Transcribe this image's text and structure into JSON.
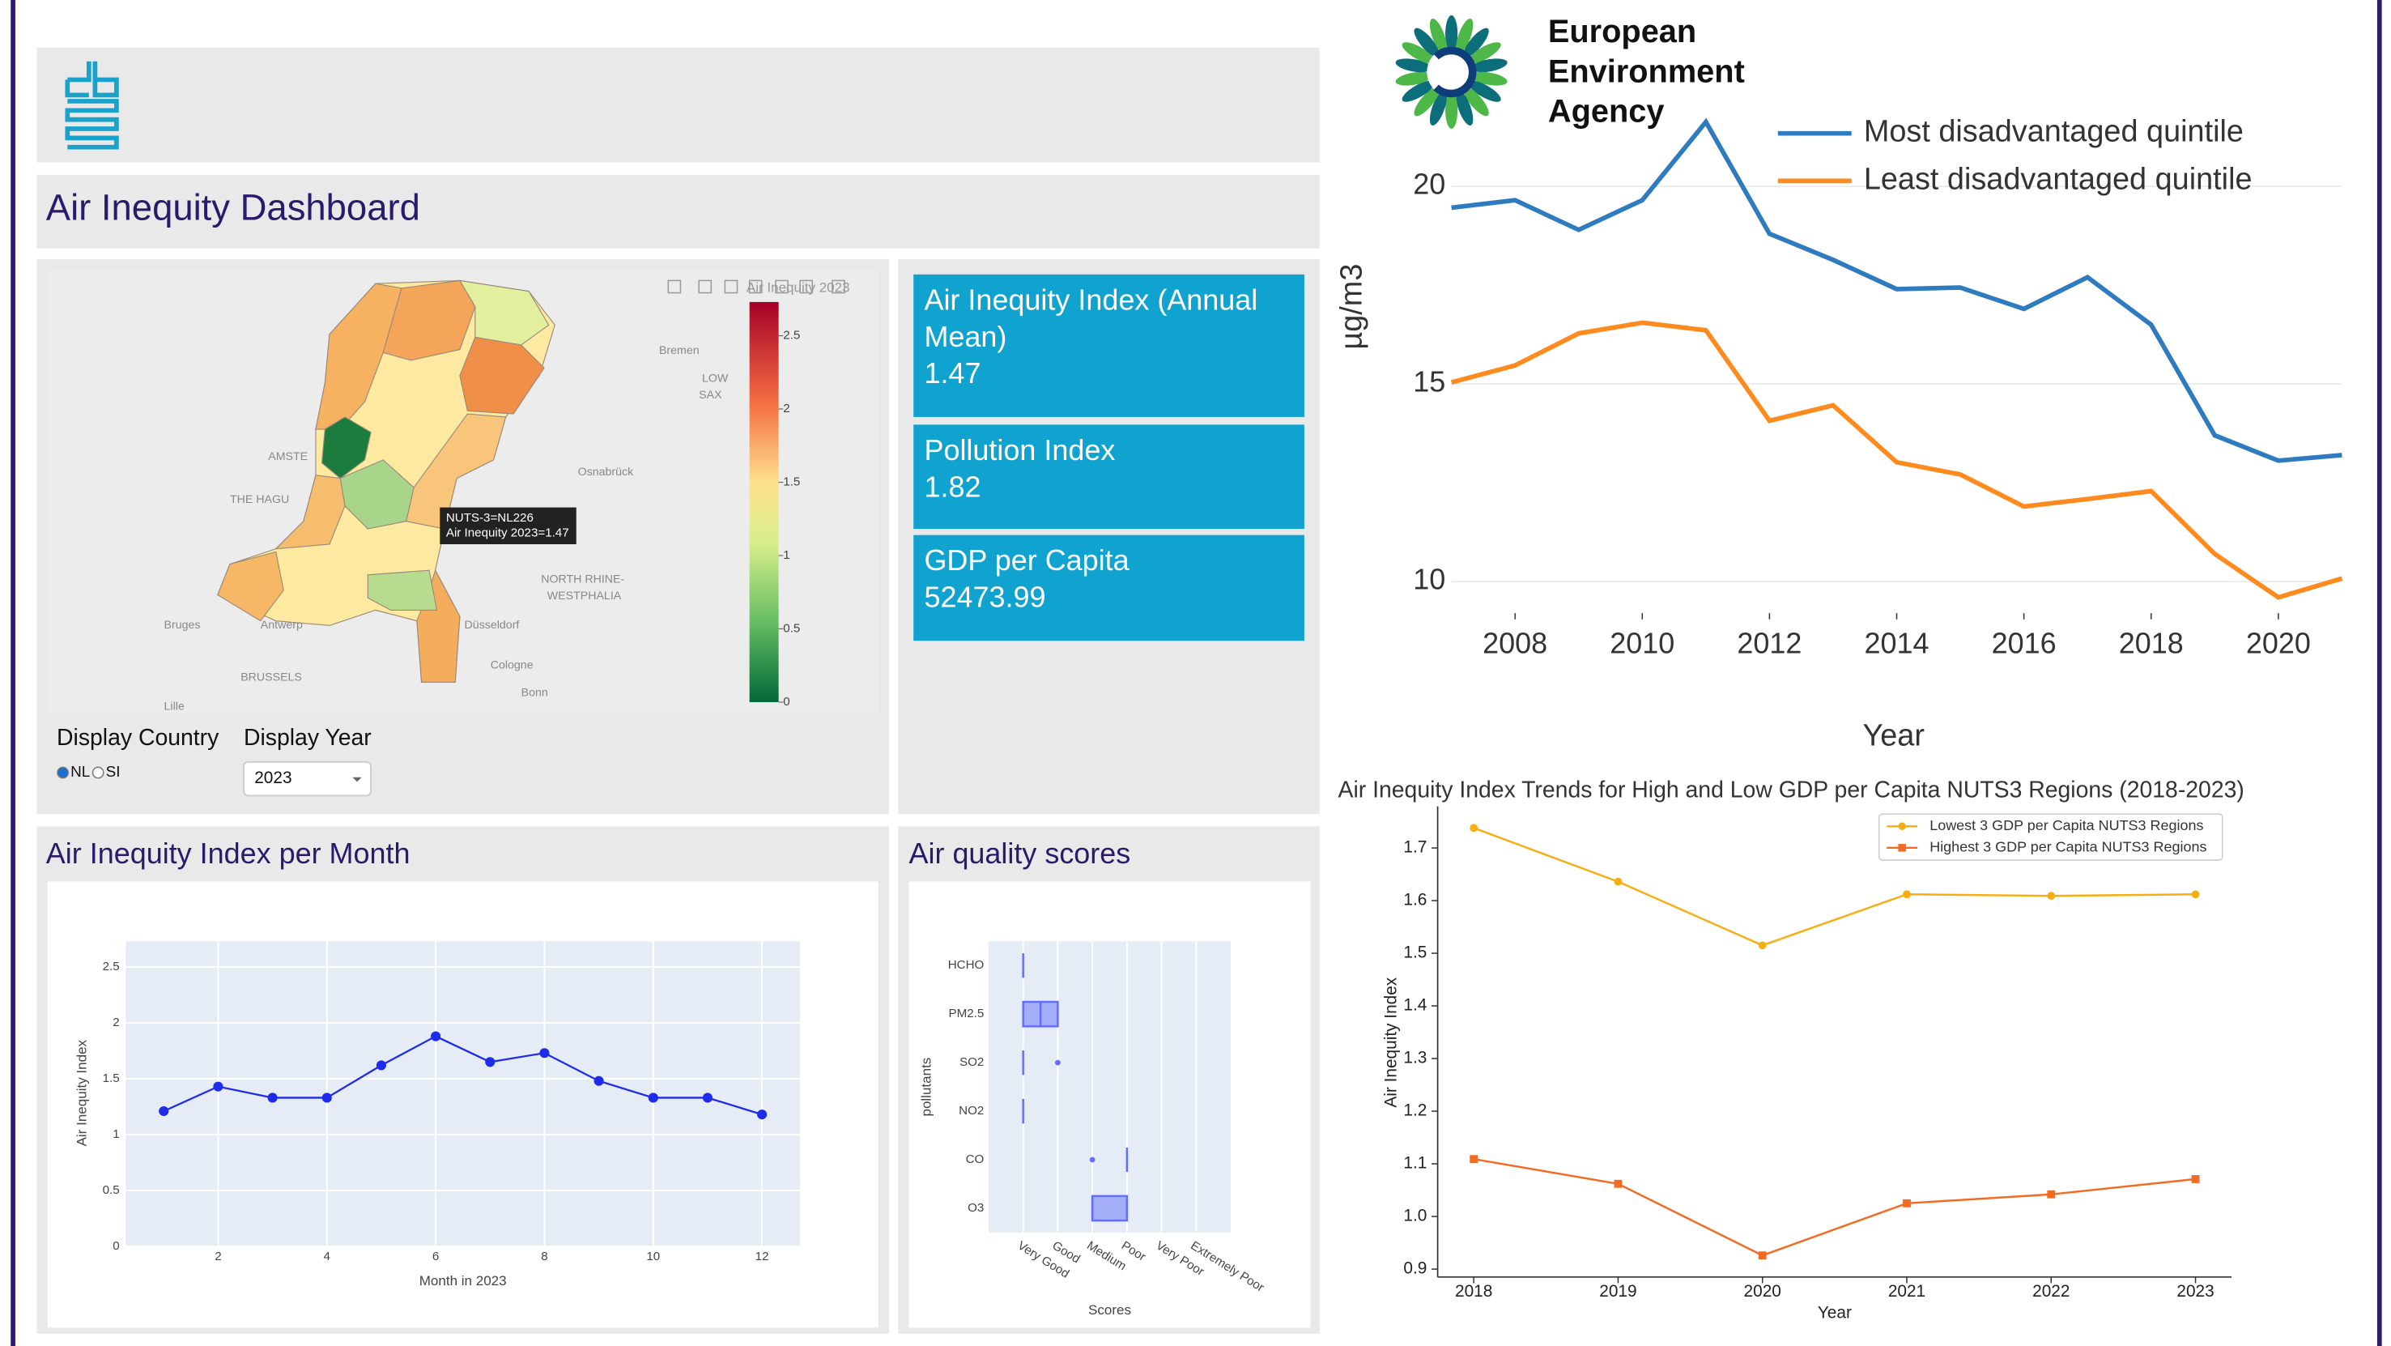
{
  "header": {
    "title": "Air Inequity Dashboard",
    "eea_logo": [
      "European",
      "Environment",
      "Agency"
    ]
  },
  "kpis": [
    {
      "label": "Air Inequity Index (Annual Mean)",
      "value": 1.47
    },
    {
      "label": "Pollution Index",
      "value": 1.82
    },
    {
      "label": "GDP per Capita",
      "value": 52473.99
    }
  ],
  "map": {
    "tooltip": [
      "NUTS-3=NL226",
      "Air Inequity 2023=1.47"
    ],
    "labels": [
      "Bremen",
      "LOW",
      "SAX",
      "Osnabrück",
      "NORTH RHINE-",
      "WESTPHALIA",
      "Düsseldorf",
      "Cologne",
      "Bonn",
      "BRUSSELS",
      "Antwerp",
      "Bruges",
      "Lille",
      "THE HAGU",
      "AMSTE"
    ],
    "colorbar": {
      "title": "Air Inequity 2023",
      "range": [
        0,
        2.73
      ],
      "ticks": [
        0,
        0.5,
        1,
        1.5,
        2,
        2.5
      ]
    }
  },
  "controls": {
    "country_label": "Display Country",
    "year_label": "Display Year",
    "country_options": [
      "NL",
      "SI"
    ],
    "selected_country": "NL",
    "year": 2023
  },
  "chart_data": [
    {
      "type": "line",
      "title": "Air Inequity Index per Month",
      "x_label": "Month in 2023",
      "y_label": "Air Inequity Index",
      "x": [
        1,
        2,
        3,
        4,
        5,
        6,
        7,
        8,
        9,
        10,
        11,
        12
      ],
      "series": [
        {
          "color": "#1f2bea",
          "values": [
            1.21,
            1.43,
            1.33,
            1.33,
            1.62,
            1.88,
            1.65,
            1.73,
            1.48,
            1.33,
            1.33,
            1.18
          ]
        }
      ],
      "xlim": [
        0.3,
        12.7
      ],
      "xticks": [
        2,
        4,
        6,
        8,
        10,
        12
      ],
      "ylim": [
        0,
        2.73
      ],
      "yticks": [
        0,
        0.5,
        1,
        1.5,
        2,
        2.5
      ],
      "grid": true
    },
    {
      "type": "box",
      "title": "Air quality scores",
      "x_label": "Scores",
      "y_label": "pollutants",
      "categories": [
        "Very Good",
        "Good",
        "Medium",
        "Poor",
        "Very Poor",
        "Extremely Poor"
      ],
      "color": "#636efa",
      "xlim": [
        -1,
        6
      ],
      "boxes": [
        {
          "name": "HCHO",
          "q1": 0,
          "median": 0,
          "q3": 0,
          "outliers": []
        },
        {
          "name": "PM2.5",
          "q1": 0,
          "median": 0.5,
          "q3": 1,
          "outliers": []
        },
        {
          "name": "SO2",
          "q1": 0,
          "median": 0,
          "q3": 0,
          "outliers": [
            1
          ]
        },
        {
          "name": "NO2",
          "q1": 0,
          "median": 0,
          "q3": 0,
          "outliers": []
        },
        {
          "name": "CO",
          "q1": 3,
          "median": 3,
          "q3": 3,
          "outliers": [
            2
          ]
        },
        {
          "name": "O3",
          "q1": 2,
          "median": 2,
          "q3": 3,
          "outliers": []
        }
      ]
    },
    {
      "type": "line",
      "x_label": "Year",
      "y_label": "µg/m3",
      "x": [
        2007,
        2008,
        2009,
        2010,
        2011,
        2012,
        2013,
        2014,
        2015,
        2016,
        2017,
        2018,
        2019,
        2020,
        2021
      ],
      "series": [
        {
          "name": "Most disadvantaged quintile",
          "color": "#2f7bbf",
          "values": [
            19.46,
            19.65,
            18.9,
            19.65,
            21.63,
            18.8,
            18.14,
            17.4,
            17.44,
            16.9,
            17.7,
            16.5,
            13.7,
            13.06,
            13.2
          ]
        },
        {
          "name": "Least disadvantaged quintile",
          "color": "#ff8a1e",
          "values": [
            15.04,
            15.47,
            16.28,
            16.55,
            16.36,
            14.07,
            14.46,
            13.02,
            12.71,
            11.9,
            12.09,
            12.29,
            10.7,
            9.6,
            10.08
          ]
        }
      ],
      "xlim": [
        2007,
        2021
      ],
      "xticks": [
        2008,
        2010,
        2012,
        2014,
        2016,
        2018,
        2020
      ],
      "ylim": [
        9.2,
        22
      ],
      "yticks": [
        10,
        15,
        20
      ],
      "grid": true,
      "legend": "top-right"
    },
    {
      "type": "line",
      "title": "Air Inequity Index Trends for High and Low GDP per Capita NUTS3 Regions (2018-2023)",
      "x_label": "Year",
      "y_label": "Air Inequity Index",
      "x": [
        2018,
        2019,
        2020,
        2021,
        2022,
        2023
      ],
      "series": [
        {
          "name": "Lowest 3 GDP per Capita NUTS3 Regions",
          "color": "#f6ae13",
          "marker": "circle",
          "values": [
            1.738,
            1.636,
            1.515,
            1.612,
            1.609,
            1.612
          ]
        },
        {
          "name": "Highest 3 GDP per Capita NUTS3 Regions",
          "color": "#f26b22",
          "marker": "square",
          "values": [
            1.109,
            1.062,
            0.926,
            1.025,
            1.042,
            1.071
          ]
        }
      ],
      "xlim": [
        2017.75,
        2023.25
      ],
      "xticks": [
        2018,
        2019,
        2020,
        2021,
        2022,
        2023
      ],
      "ylim": [
        0.885,
        1.779
      ],
      "yticks": [
        0.9,
        {
          "value": 1,
          "label": "1.0"
        },
        1.1,
        1.2,
        1.3,
        1.4,
        1.5,
        1.6,
        1.7
      ],
      "grid": false,
      "legend": "top-right"
    }
  ]
}
